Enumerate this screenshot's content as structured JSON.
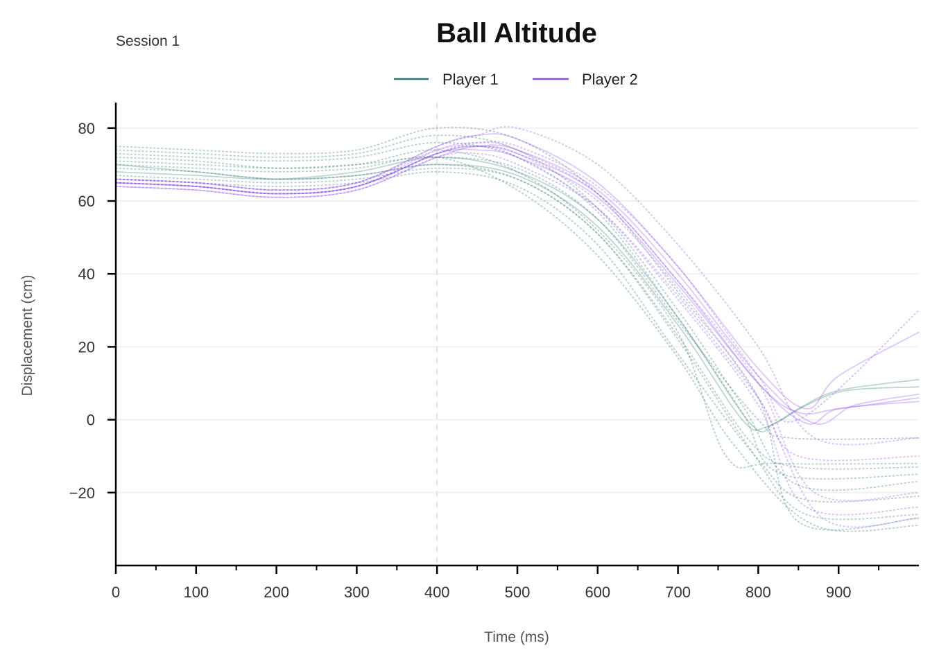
{
  "chart_data": {
    "type": "line",
    "title": "Ball Altitude",
    "subtitle": "Session 1",
    "xlabel": "Time (ms)",
    "ylabel": "Displacement (cm)",
    "xlim": [
      0,
      1000
    ],
    "ylim": [
      -40,
      87
    ],
    "x_ticks": [
      0,
      100,
      200,
      300,
      400,
      500,
      600,
      700,
      800,
      900
    ],
    "x_minor_ticks": [
      50,
      150,
      250,
      350,
      450,
      550,
      650,
      750,
      850,
      950
    ],
    "y_ticks": [
      -20,
      0,
      20,
      40,
      60,
      80
    ],
    "y_tick_labels": [
      "−20",
      "0",
      "20",
      "40",
      "60",
      "80"
    ],
    "grid": "horizontal",
    "legend_position": "top-center",
    "reference_line_x": 400,
    "series": [
      {
        "name": "Player 1",
        "color": "#2a7370",
        "values": [
          {
            "style": "solid",
            "x": [
              0,
              100,
              200,
              300,
              400,
              500,
              600,
              700,
              780,
              810,
              850,
              900,
              1000
            ],
            "y": [
              70,
              68,
              66,
              67,
              70,
              67,
              53,
              26,
              0,
              -2,
              3,
              8,
              11
            ]
          },
          {
            "style": "solid",
            "x": [
              0,
              100,
              200,
              300,
              400,
              500,
              600,
              700,
              790,
              820,
              860,
              910,
              1000
            ],
            "y": [
              68,
              67,
              66,
              68,
              72,
              68,
              55,
              28,
              -1,
              -1,
              4,
              8,
              9
            ]
          },
          {
            "style": "dotted",
            "x": [
              0,
              100,
              200,
              300,
              400,
              500,
              600,
              700,
              780,
              830,
              1000
            ],
            "y": [
              73,
              72,
              71,
              72,
              76,
              72,
              57,
              28,
              2,
              -15,
              -15
            ]
          },
          {
            "style": "dotted",
            "x": [
              0,
              100,
              200,
              300,
              400,
              500,
              600,
              700,
              800,
              850,
              1000
            ],
            "y": [
              75,
              74,
              73,
              74,
              80,
              77,
              62,
              35,
              6,
              -28,
              -27
            ]
          },
          {
            "style": "dotted",
            "x": [
              0,
              100,
              200,
              300,
              400,
              500,
              600,
              700,
              790,
              860,
              1000
            ],
            "y": [
              69,
              68,
              66,
              67,
              70,
              66,
              51,
              22,
              -8,
              -26,
              -26
            ]
          },
          {
            "style": "dotted",
            "x": [
              0,
              100,
              200,
              300,
              400,
              500,
              600,
              700,
              800,
              860,
              1000
            ],
            "y": [
              66,
              65,
              64,
              65,
              68,
              64,
              48,
              18,
              -11,
              -22,
              -21
            ]
          },
          {
            "style": "dotted",
            "x": [
              0,
              100,
              200,
              300,
              400,
              500,
              600,
              700,
              760,
              820,
              1000
            ],
            "y": [
              72,
              71,
              69,
              70,
              74,
              68,
              52,
              24,
              -10,
              -12,
              -12
            ]
          },
          {
            "style": "dotted",
            "x": [
              0,
              100,
              200,
              300,
              400,
              500,
              600,
              700,
              800,
              840,
              1000
            ],
            "y": [
              71,
              70,
              69,
              70,
              72,
              69,
              55,
              27,
              0,
              -5,
              -5
            ]
          },
          {
            "style": "dotted",
            "x": [
              0,
              100,
              200,
              300,
              400,
              500,
              600,
              700,
              780,
              850,
              1000
            ],
            "y": [
              74,
              73,
              72,
              73,
              78,
              74,
              58,
              30,
              4,
              -18,
              -17
            ]
          },
          {
            "style": "dotted",
            "x": [
              0,
              100,
              200,
              300,
              400,
              500,
              600,
              700,
              790,
              850,
              1000
            ],
            "y": [
              67,
              66,
              65,
              66,
              69,
              66,
              51,
              23,
              -6,
              -13,
              -13
            ]
          },
          {
            "style": "dotted",
            "x": [
              0,
              100,
              200,
              300,
              400,
              500,
              600,
              700,
              770,
              870,
              1000
            ],
            "y": [
              70,
              69,
              68,
              69,
              72,
              63,
              45,
              17,
              -7,
              -29,
              -29
            ]
          }
        ]
      },
      {
        "name": "Player 2",
        "color": "#8a4ae8",
        "values": [
          {
            "style": "solid",
            "x": [
              0,
              100,
              200,
              300,
              400,
              450,
              500,
              600,
              700,
              800,
              850,
              900,
              1000
            ],
            "y": [
              65,
              64,
              62,
              64,
              73,
              74,
              72,
              61,
              37,
              10,
              2,
              3,
              6
            ]
          },
          {
            "style": "solid",
            "x": [
              0,
              100,
              200,
              300,
              400,
              450,
              500,
              600,
              700,
              800,
              860,
              900,
              1000
            ],
            "y": [
              66,
              65,
              63,
              65,
              75,
              78,
              77,
              65,
              42,
              14,
              3,
              12,
              24
            ]
          },
          {
            "style": "solid",
            "x": [
              0,
              100,
              200,
              300,
              400,
              450,
              500,
              600,
              700,
              800,
              870,
              920,
              1000
            ],
            "y": [
              64,
              63,
              61,
              63,
              72,
              75,
              74,
              63,
              40,
              12,
              -1,
              4,
              7
            ]
          },
          {
            "style": "solid",
            "x": [
              0,
              100,
              200,
              300,
              400,
              450,
              500,
              600,
              700,
              800,
              860,
              900,
              1000
            ],
            "y": [
              65,
              64,
              62,
              64,
              73,
              75,
              73,
              62,
              38,
              10,
              -1,
              3,
              5
            ]
          },
          {
            "style": "dotted",
            "x": [
              0,
              100,
              200,
              300,
              400,
              450,
              500,
              600,
              700,
              800,
              880,
              1000
            ],
            "y": [
              66,
              65,
              63,
              65,
              74,
              75,
              73,
              60,
              36,
              6,
              -27,
              -27
            ]
          },
          {
            "style": "dotted",
            "x": [
              0,
              100,
              200,
              300,
              400,
              450,
              500,
              600,
              700,
              800,
              870,
              1000
            ],
            "y": [
              65,
              64,
              62,
              64,
              73,
              76,
              74,
              62,
              38,
              10,
              -20,
              -20
            ]
          },
          {
            "style": "dotted",
            "x": [
              0,
              100,
              200,
              300,
              400,
              450,
              500,
              600,
              700,
              800,
              850,
              1000
            ],
            "y": [
              64,
              63,
              61,
              63,
              72,
              73,
              70,
              58,
              34,
              6,
              -10,
              -10
            ]
          },
          {
            "style": "dotted",
            "x": [
              0,
              100,
              200,
              300,
              400,
              450,
              500,
              600,
              700,
              800,
              870,
              1000
            ],
            "y": [
              66,
              65,
              63,
              65,
              75,
              78,
              80,
              70,
              48,
              20,
              -5,
              -5
            ]
          },
          {
            "style": "dotted",
            "x": [
              0,
              100,
              200,
              300,
              400,
              450,
              500,
              600,
              700,
              800,
              860,
              1000
            ],
            "y": [
              65,
              64,
              62,
              64,
              73,
              75,
              72,
              58,
              33,
              4,
              -24,
              -24
            ]
          },
          {
            "style": "dotted",
            "x": [
              0,
              100,
              200,
              300,
              400,
              450,
              500,
              600,
              700,
              800,
              850,
              1000
            ],
            "y": [
              65,
              64,
              62,
              64,
              74,
              76,
              75,
              64,
              42,
              12,
              0,
              30
            ]
          }
        ]
      }
    ]
  }
}
